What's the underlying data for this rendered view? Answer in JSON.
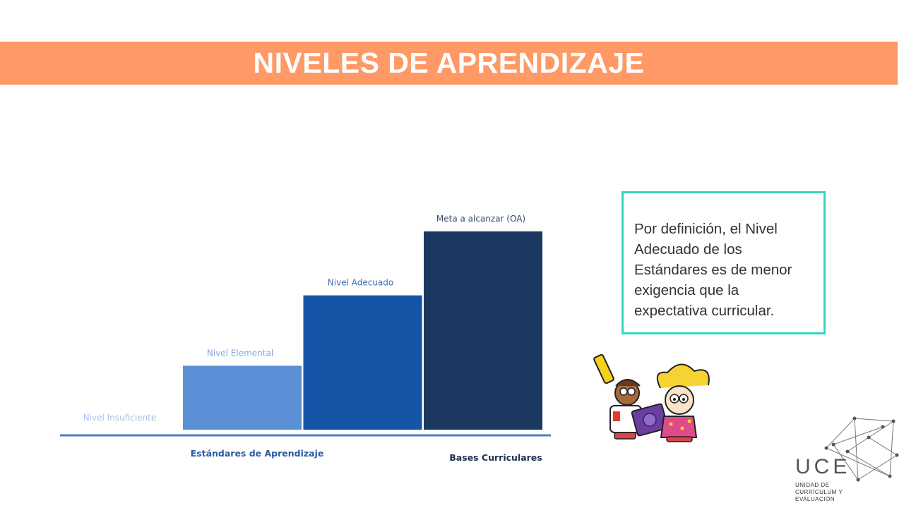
{
  "header": {
    "title": "NIVELES DE APRENDIZAJE"
  },
  "chart_data": {
    "type": "bar",
    "title": "",
    "categories": [
      "Nivel Insuficiente",
      "Nivel Elemental",
      "Nivel Adecuado",
      "Meta a alcanzar (OA)"
    ],
    "values": [
      0,
      1,
      2.1,
      3.1
    ],
    "ylim": [
      0,
      3.1
    ],
    "colors": [
      "#5b8fd6",
      "#5b8fd6",
      "#1454a6",
      "#1a3860"
    ],
    "label_colors": [
      "#a3c1ea",
      "#7fa6dc",
      "#3a6fb4",
      "#33496b"
    ],
    "axis_color": "#4f7fc3",
    "group_labels": [
      "Estándares de Aprendizaje",
      "Bases Curriculares"
    ],
    "group_label_colors": [
      "#2a5aa0",
      "#22324f"
    ]
  },
  "info_box": {
    "text": "Por definición, el Nivel Adecuado de los Estándares es de menor exigencia que la expectativa curricular."
  },
  "logo": {
    "name": "UCE",
    "subtitle": [
      "UNIDAD DE",
      "CURRÍCULUM Y",
      "EVALUACIÓN"
    ]
  }
}
